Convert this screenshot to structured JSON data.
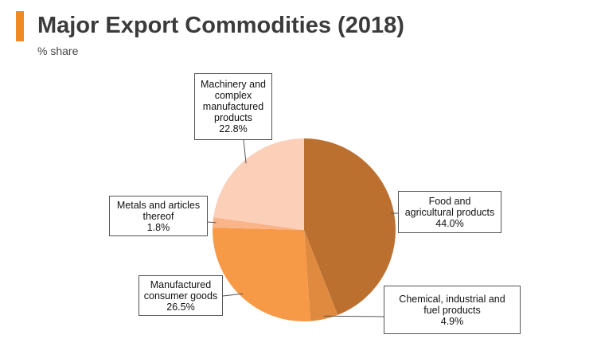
{
  "header": {
    "title": "Major Export Commodities (2018)",
    "subtitle": "% share",
    "accent_color": "#f08a24"
  },
  "chart_data": {
    "type": "pie",
    "title": "Major Export Commodities (2018)",
    "subtitle": "% share",
    "unit": "%",
    "slices": [
      {
        "name": "Food and\nagricultural products",
        "value": 44.0,
        "label": "44.0%",
        "color": "#bb7030"
      },
      {
        "name": "Chemical, industrial and\nfuel products",
        "value": 4.9,
        "label": "4.9%",
        "color": "#e08a40"
      },
      {
        "name": "Manufactured\nconsumer goods",
        "value": 26.5,
        "label": "26.5%",
        "color": "#f79a48"
      },
      {
        "name": "Metals and articles\nthereof",
        "value": 1.8,
        "label": "1.8%",
        "color": "#f9b48a"
      },
      {
        "name": "Machinery and\ncomplex\nmanufactured\nproducts",
        "value": 22.8,
        "label": "22.8%",
        "color": "#fccfb9"
      }
    ]
  }
}
